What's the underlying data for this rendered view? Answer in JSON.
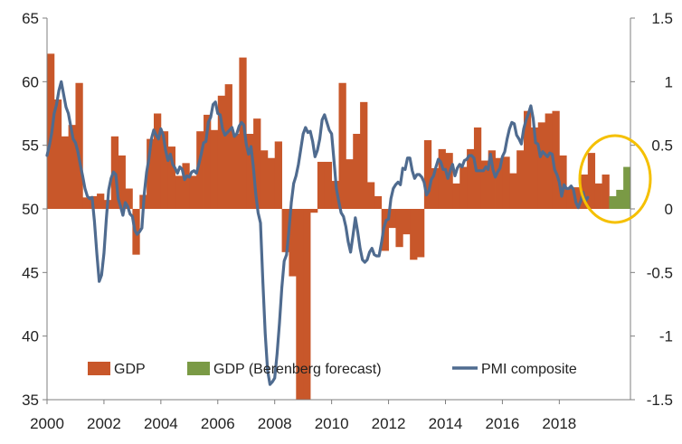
{
  "chart_data": {
    "type": "bar+line",
    "title": "",
    "x_tick_labels": [
      "2000",
      "2002",
      "2004",
      "2006",
      "2008",
      "2010",
      "2012",
      "2014",
      "2016",
      "2018"
    ],
    "x_range": [
      2000.0,
      2020.5
    ],
    "left_axis": {
      "range": [
        35,
        65
      ],
      "ticks": [
        "35",
        "40",
        "45",
        "50",
        "55",
        "60",
        "65"
      ],
      "series": "PMI composite"
    },
    "right_axis": {
      "range": [
        -1.5,
        1.5
      ],
      "ticks": [
        "-1.5",
        "-1",
        "-0.5",
        "0",
        "0.5",
        "1",
        "1.5"
      ],
      "series": "GDP"
    },
    "colors": {
      "gdp": "#C8572A",
      "forecast": "#7A9A45",
      "pmi": "#4F6B8F",
      "highlight": "#F5C000",
      "axis": "#7F7F7F"
    },
    "series": [
      {
        "name": "GDP",
        "axis": "right",
        "quarters": [
          "2000Q1",
          "2000Q2",
          "2000Q3",
          "2000Q4",
          "2001Q1",
          "2001Q2",
          "2001Q3",
          "2001Q4",
          "2002Q1",
          "2002Q2",
          "2002Q3",
          "2002Q4",
          "2003Q1",
          "2003Q2",
          "2003Q3",
          "2003Q4",
          "2004Q1",
          "2004Q2",
          "2004Q3",
          "2004Q4",
          "2005Q1",
          "2005Q2",
          "2005Q3",
          "2005Q4",
          "2006Q1",
          "2006Q2",
          "2006Q3",
          "2006Q4",
          "2007Q1",
          "2007Q2",
          "2007Q3",
          "2007Q4",
          "2008Q1",
          "2008Q2",
          "2008Q3",
          "2008Q4",
          "2009Q1",
          "2009Q2",
          "2009Q3",
          "2009Q4",
          "2010Q1",
          "2010Q2",
          "2010Q3",
          "2010Q4",
          "2011Q1",
          "2011Q2",
          "2011Q3",
          "2011Q4",
          "2012Q1",
          "2012Q2",
          "2012Q3",
          "2012Q4",
          "2013Q1",
          "2013Q2",
          "2013Q3",
          "2013Q4",
          "2014Q1",
          "2014Q2",
          "2014Q3",
          "2014Q4",
          "2015Q1",
          "2015Q2",
          "2015Q3",
          "2015Q4",
          "2016Q1",
          "2016Q2",
          "2016Q3",
          "2016Q4",
          "2017Q1",
          "2017Q2",
          "2017Q3",
          "2017Q4",
          "2018Q1",
          "2018Q2",
          "2018Q3",
          "2018Q4",
          "2019Q1",
          "2019Q2",
          "2019Q3"
        ],
        "values": [
          1.22,
          0.86,
          0.57,
          0.66,
          0.99,
          0.09,
          0.1,
          0.12,
          0.07,
          0.57,
          0.42,
          0.16,
          -0.36,
          0.11,
          0.55,
          0.75,
          0.61,
          0.49,
          0.26,
          0.36,
          0.26,
          0.61,
          0.74,
          0.62,
          0.89,
          0.98,
          0.59,
          1.19,
          0.59,
          0.71,
          0.46,
          0.4,
          0.53,
          -0.34,
          -0.53,
          -1.5,
          -1.5,
          -0.03,
          0.37,
          0.37,
          0.22,
          0.99,
          0.39,
          0.59,
          0.84,
          0.21,
          0.1,
          -0.33,
          -0.15,
          -0.3,
          -0.2,
          -0.4,
          -0.38,
          0.54,
          0.32,
          0.47,
          0.44,
          0.2,
          0.33,
          0.47,
          0.64,
          0.38,
          0.46,
          0.4,
          0.41,
          0.28,
          0.46,
          0.77,
          0.64,
          0.68,
          0.75,
          0.77,
          0.42,
          0.16,
          0.17,
          0.27,
          0.44,
          0.2,
          0.27
        ]
      },
      {
        "name": "GDP (Berenberg forecast)",
        "axis": "right",
        "quarters": [
          "2019Q4",
          "2020Q1",
          "2020Q2"
        ],
        "values": [
          0.1,
          0.15,
          0.33
        ]
      },
      {
        "name": "PMI composite",
        "axis": "left",
        "type": "line",
        "x_from": 2000.0,
        "x_step_months": 1,
        "values": [
          54.2,
          55.0,
          56.0,
          57.5,
          58.2,
          59.3,
          60.0,
          59.0,
          58.0,
          57.5,
          56.5,
          55.5,
          55.2,
          54.5,
          53.5,
          52.6,
          51.6,
          51.0,
          50.8,
          50.9,
          49.0,
          46.5,
          44.3,
          44.8,
          46.5,
          49.2,
          51.5,
          52.4,
          52.9,
          52.7,
          50.8,
          50.2,
          49.5,
          50.5,
          50.2,
          49.6,
          49.4,
          48.3,
          48.0,
          48.2,
          48.5,
          51.2,
          52.9,
          54.0,
          55.5,
          56.2,
          55.8,
          55.5,
          56.3,
          55.8,
          54.6,
          53.8,
          54.3,
          53.5,
          53.2,
          52.8,
          53.3,
          53.1,
          52.3,
          52.6,
          52.5,
          52.9,
          53.0,
          52.8,
          53.5,
          54.3,
          55.2,
          55.3,
          56.8,
          57.2,
          58.2,
          58.4,
          57.5,
          57.4,
          56.3,
          55.8,
          56.0,
          56.2,
          56.4,
          55.7,
          55.9,
          56.5,
          56.8,
          56.6,
          55.1,
          54.3,
          54.9,
          53.3,
          51.2,
          49.7,
          48.9,
          44.3,
          40.2,
          37.3,
          36.2,
          36.4,
          36.7,
          38.6,
          41.0,
          43.8,
          45.9,
          46.4,
          48.3,
          50.5,
          52.0,
          52.6,
          53.5,
          54.7,
          55.9,
          56.4,
          56.0,
          56.1,
          55.3,
          54.1,
          54.6,
          55.5,
          57.0,
          57.4,
          56.8,
          56.2,
          55.9,
          53.8,
          51.6,
          50.6,
          49.7,
          49.4,
          48.6,
          47.4,
          46.6,
          47.9,
          49.3,
          48.2,
          46.9,
          46.0,
          45.8,
          46.0,
          46.6,
          46.9,
          46.4,
          46.3,
          46.3,
          47.3,
          48.5,
          49.1,
          49.2,
          50.8,
          51.6,
          51.9,
          52.1,
          51.9,
          53.2,
          53.1,
          54.0,
          54.0,
          53.0,
          52.4,
          52.7,
          52.7,
          52.5,
          52.1,
          51.1,
          51.4,
          52.3,
          52.6,
          53.3,
          53.9,
          53.7,
          53.1,
          53.1,
          52.4,
          53.0,
          53.5,
          52.6,
          53.2,
          53.5,
          53.3,
          53.8,
          53.9,
          54.2,
          54.2,
          54.0,
          53.0,
          53.0,
          53.0,
          53.0,
          53.3,
          53.1,
          54.3,
          53.1,
          52.5,
          52.9,
          53.2,
          54.1,
          54.5,
          55.5,
          56.3,
          56.8,
          56.7,
          55.8,
          55.5,
          55.1,
          56.3,
          57.0,
          57.5,
          58.1,
          57.1,
          55.2,
          55.1,
          54.1,
          54.5,
          54.3,
          54.1,
          54.4,
          54.3,
          53.1,
          52.7,
          52.1,
          51.0,
          51.9,
          51.6,
          51.6,
          51.8,
          51.5,
          50.5,
          50.1,
          50.6,
          51.3,
          50.6,
          50.9
        ]
      }
    ],
    "legend": [
      {
        "label": "GDP",
        "color": "#C8572A",
        "kind": "bar"
      },
      {
        "label": "GDP (Berenberg forecast)",
        "color": "#7A9A45",
        "kind": "bar"
      },
      {
        "label": "PMI composite",
        "color": "#4F6B8F",
        "kind": "line"
      }
    ],
    "annotations": [
      {
        "kind": "ellipse",
        "description": "highlighted latest period",
        "around_x": [
          2019.75,
          2020.4
        ]
      }
    ]
  }
}
